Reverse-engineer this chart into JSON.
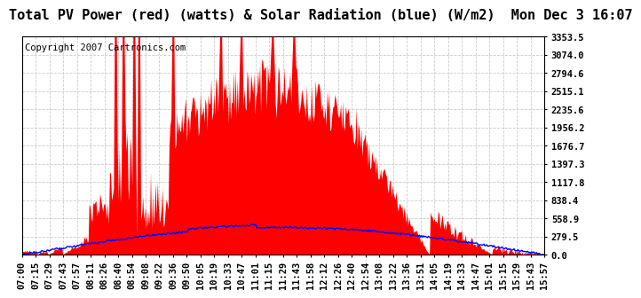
{
  "title": "Total PV Power (red) (watts) & Solar Radiation (blue) (W/m2)  Mon Dec 3 16:07",
  "copyright": "Copyright 2007 Cartronics.com",
  "bg_color": "#ffffff",
  "plot_bg_color": "#ffffff",
  "grid_color": "#cccccc",
  "red_color": "#ff0000",
  "blue_color": "#0000ff",
  "ymin": 0.0,
  "ymax": 3353.5,
  "yticks": [
    0.0,
    279.5,
    558.9,
    838.4,
    1117.8,
    1397.3,
    1676.7,
    1956.2,
    2235.6,
    2515.1,
    2794.6,
    3074.0,
    3353.5
  ],
  "xtick_labels": [
    "07:00",
    "07:15",
    "07:29",
    "07:43",
    "07:57",
    "08:11",
    "08:26",
    "08:40",
    "08:54",
    "09:08",
    "09:22",
    "09:36",
    "09:50",
    "10:05",
    "10:19",
    "10:33",
    "10:47",
    "11:01",
    "11:15",
    "11:29",
    "11:43",
    "11:58",
    "12:12",
    "12:26",
    "12:40",
    "12:54",
    "13:08",
    "13:22",
    "13:36",
    "13:51",
    "14:05",
    "14:19",
    "14:33",
    "14:47",
    "15:01",
    "15:15",
    "15:29",
    "15:43",
    "15:57"
  ],
  "title_fontsize": 11,
  "tick_fontsize": 7.5,
  "copyright_fontsize": 7.5
}
